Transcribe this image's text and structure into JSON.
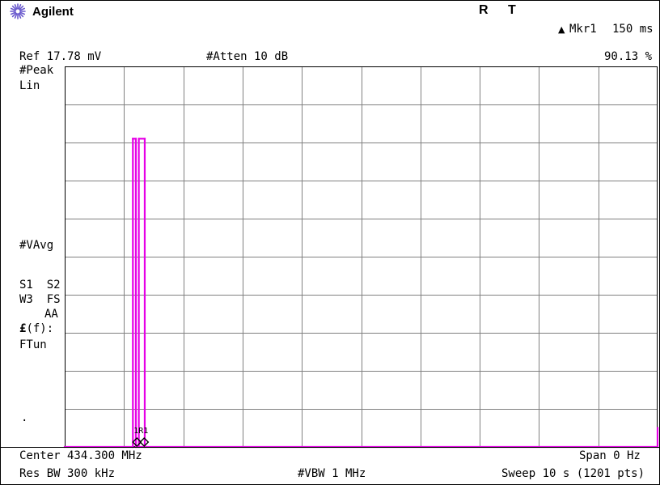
{
  "header": {
    "brand": "Agilent",
    "brand_icon": "starburst-icon",
    "indicator_r": "R",
    "indicator_t": "T",
    "marker_label": "Mkr1",
    "marker_time": "150 ms",
    "marker_value": "90.13 %",
    "ref_level": "Ref 17.78 mV",
    "atten": "#Atten 10 dB"
  },
  "left_panel": {
    "detector": "#Peak",
    "scale": "Lin",
    "avg": "#VAvg",
    "s1s2": "S1  S2",
    "w3fs": "W3  FS",
    "aa": "AA",
    "ef_symbol": "£",
    "ef_suffix": "(f):",
    "ftun": "FTun",
    "dot": "."
  },
  "marker_tag": "1R1",
  "footer": {
    "center": "Center 434.300 MHz",
    "span": "Span 0 Hz",
    "res_bw": "Res BW 300 kHz",
    "vbw": "#VBW 1 MHz",
    "sweep": "Sweep 10 s (1201 pts)"
  },
  "colors": {
    "trace": "#e600e6",
    "grid": "#808080",
    "text": "#000000",
    "background": "#ffffff",
    "brand_icon": "#6a5acd"
  },
  "chart_data": {
    "type": "line",
    "grid_divisions": {
      "x": 10,
      "y": 10
    },
    "x_range_s": [
      0,
      10
    ],
    "y_range_pct": [
      0,
      100
    ],
    "marker": {
      "x_s": 1.3,
      "y_pct": 0
    },
    "trace_segments": [
      {
        "x0_s": 0.0,
        "x1_s": 1.15,
        "y_pct": 0
      },
      {
        "x0_s": 1.15,
        "x1_s": 1.15,
        "y0_pct": 0,
        "y1_pct": 81
      },
      {
        "x0_s": 1.15,
        "x1_s": 1.2,
        "y_pct": 81
      },
      {
        "x0_s": 1.2,
        "x1_s": 1.2,
        "y0_pct": 81,
        "y1_pct": 0
      },
      {
        "x0_s": 1.25,
        "x1_s": 1.25,
        "y0_pct": 0,
        "y1_pct": 81
      },
      {
        "x0_s": 1.25,
        "x1_s": 1.35,
        "y_pct": 81
      },
      {
        "x0_s": 1.35,
        "x1_s": 1.35,
        "y0_pct": 81,
        "y1_pct": 0
      },
      {
        "x0_s": 1.2,
        "x1_s": 10.0,
        "y_pct": 0
      },
      {
        "x0_s": 10.0,
        "x1_s": 10.0,
        "y0_pct": 0,
        "y1_pct": 5
      }
    ]
  }
}
